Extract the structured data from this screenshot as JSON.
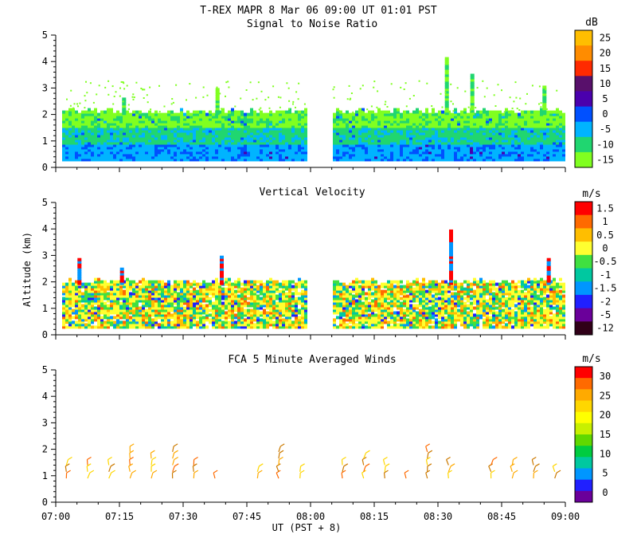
{
  "chart_data": {
    "type": "heatmap",
    "title": "T-REX  MAPR  8 Mar 06  09:00 UT  01:01  PST",
    "xlabel": "UT  (PST + 8)",
    "ylabel": "Altitude (km)",
    "x_ticks": [
      "07:00",
      "07:15",
      "07:30",
      "07:45",
      "08:00",
      "08:15",
      "08:30",
      "08:45",
      "09:00"
    ],
    "xlim_minutes": [
      0,
      120
    ],
    "panels": [
      {
        "key": "snr",
        "title": "Signal to Noise Ratio",
        "units": "dB",
        "ylim": [
          0,
          5
        ],
        "y_ticks": [
          "0",
          "1",
          "2",
          "3",
          "4",
          "5"
        ],
        "colorbar_labels": [
          "25",
          "20",
          "15",
          "10",
          "5",
          "0",
          "-5",
          "-10",
          "-15"
        ],
        "colorbar_colors": [
          "#ffbe00",
          "#ff8c00",
          "#ff2a00",
          "#58106b",
          "#4a00ad",
          "#0050ff",
          "#00b4ff",
          "#20d670",
          "#80ff20"
        ],
        "data_gap_minutes": [
          59,
          65
        ],
        "approx_top_km": 2.1,
        "plumes": [
          {
            "t": 16,
            "top_km": 2.7
          },
          {
            "t": 38,
            "top_km": 3.0
          },
          {
            "t": 92,
            "top_km": 4.2
          },
          {
            "t": 98,
            "top_km": 3.6
          },
          {
            "t": 115,
            "top_km": 3.1
          }
        ]
      },
      {
        "key": "vv",
        "title": "Vertical Velocity",
        "units": "m/s",
        "ylim": [
          0,
          5
        ],
        "y_ticks": [
          "0",
          "1",
          "2",
          "3",
          "4",
          "5"
        ],
        "colorbar_labels": [
          "1.5",
          "1",
          "0.5",
          "0",
          "-0.5",
          "-1",
          "-1.5",
          "-2",
          "-5",
          "-12"
        ],
        "colorbar_colors": [
          "#ff0000",
          "#ff6a00",
          "#ffbe00",
          "#ffff30",
          "#40e040",
          "#00c8a0",
          "#0096ff",
          "#2020ff",
          "#6a009a",
          "#300018"
        ],
        "data_gap_minutes": [
          59,
          65
        ],
        "approx_top_km": 2.0,
        "plumes": [
          {
            "t": 5.5,
            "top_km": 2.9
          },
          {
            "t": 15.5,
            "top_km": 2.6
          },
          {
            "t": 39,
            "top_km": 3.0
          },
          {
            "t": 93,
            "top_km": 4.0
          },
          {
            "t": 116,
            "top_km": 2.9
          }
        ]
      },
      {
        "key": "winds",
        "title": "FCA 5 Minute Averaged Winds",
        "units": "m/s",
        "ylim": [
          0,
          5
        ],
        "y_ticks": [
          "0",
          "1",
          "2",
          "3",
          "4",
          "5"
        ],
        "colorbar_labels": [
          "30",
          "25",
          "20",
          "15",
          "10",
          "5",
          "0"
        ],
        "colorbar_colors": [
          "#ff0000",
          "#ff6a00",
          "#ffaa00",
          "#ffd700",
          "#ffff00",
          "#c8f000",
          "#60d800",
          "#00cc40",
          "#00c8a0",
          "#0096ff",
          "#2020ff",
          "#6a009a"
        ],
        "barb_times_minutes": [
          2.5,
          7.5,
          12.5,
          17.5,
          22.5,
          27.5,
          32.5,
          37.5,
          47.5,
          52.5,
          57.5,
          67.5,
          72.5,
          77.5,
          82.5,
          87.5,
          92.5,
          102.5,
          107.5,
          112.5,
          117.5
        ],
        "barb_top_km": [
          1.4,
          1.4,
          1.5,
          2.0,
          1.8,
          2.0,
          1.6,
          1.0,
          1.3,
          1.9,
          1.3,
          1.5,
          1.8,
          1.6,
          1.0,
          2.0,
          1.5,
          1.4,
          1.5,
          1.5,
          1.2
        ]
      }
    ]
  }
}
